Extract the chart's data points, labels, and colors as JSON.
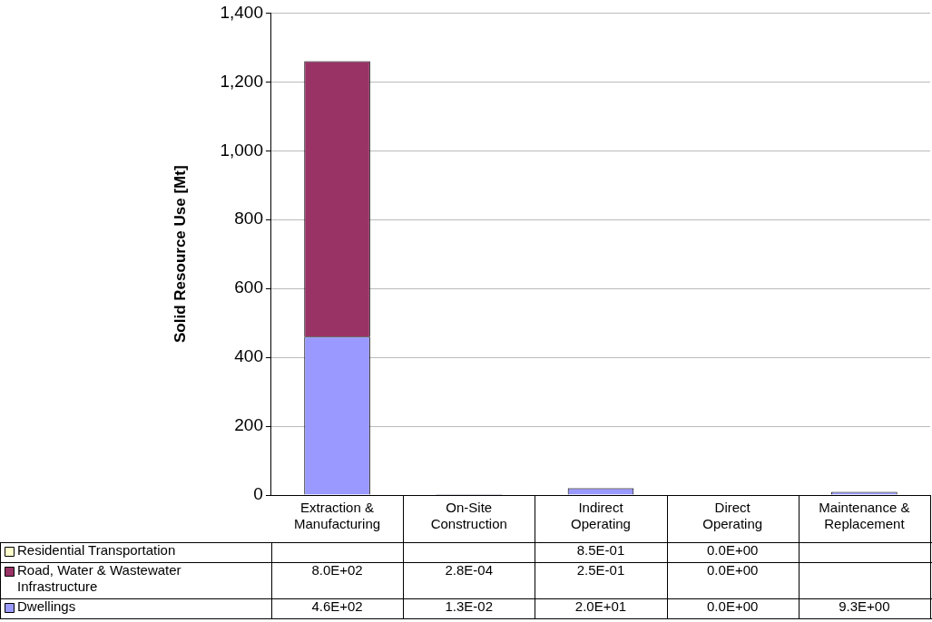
{
  "chart_data": {
    "type": "bar",
    "stacked": true,
    "ylabel": "Solid Resource Use [Mt]",
    "categories": [
      "Extraction & Manufacturing",
      "On-Site Construction",
      "Indirect Operating",
      "Direct Operating",
      "Maintenance & Replacement"
    ],
    "series": [
      {
        "name": "Dwellings",
        "color": "#9999ff",
        "values": [
          460,
          0.013,
          20,
          0,
          9.3
        ],
        "value_labels": [
          "4.6E+02",
          "1.3E-02",
          "2.0E+01",
          "0.0E+00",
          "9.3E+00"
        ]
      },
      {
        "name": "Road, Water & Wastewater Infrastructure",
        "color": "#993366",
        "values": [
          800,
          0.00028,
          0.25,
          0,
          null
        ],
        "value_labels": [
          "8.0E+02",
          "2.8E-04",
          "2.5E-01",
          "0.0E+00",
          null
        ]
      },
      {
        "name": "Residential Transportation",
        "color": "#ffffcc",
        "values": [
          null,
          null,
          0.85,
          0,
          null
        ],
        "value_labels": [
          null,
          null,
          "8.5E-01",
          "0.0E+00",
          null
        ]
      }
    ],
    "ylim": [
      0,
      1400
    ],
    "yticks": [
      {
        "value": 0,
        "label": "0"
      },
      {
        "value": 200,
        "label": "200"
      },
      {
        "value": 400,
        "label": "400"
      },
      {
        "value": 600,
        "label": "600"
      },
      {
        "value": 800,
        "label": "800"
      },
      {
        "value": 1000,
        "label": "1,000"
      },
      {
        "value": 1200,
        "label": "1,200"
      },
      {
        "value": 1400,
        "label": "1,400"
      }
    ],
    "grid": "y",
    "legend": "bottom"
  }
}
